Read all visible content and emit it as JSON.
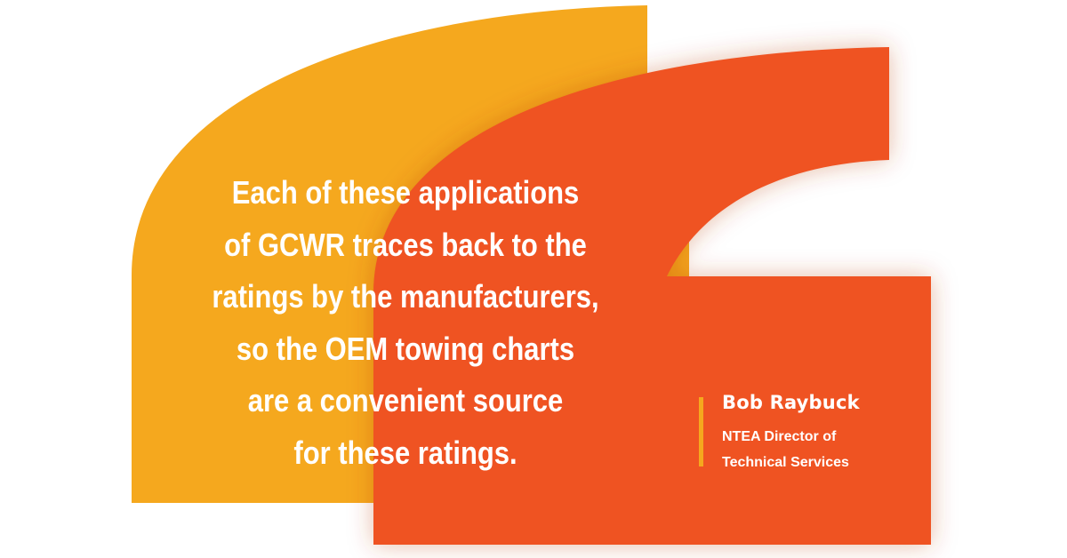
{
  "quote": {
    "lines": [
      "Each of these applications",
      "of GCWR traces back to the",
      "ratings by the manufacturers,",
      "so the OEM towing charts",
      "are a convenient source",
      "for these ratings."
    ]
  },
  "attribution": {
    "name": "Bob Raybuck",
    "title_lines": [
      "NTEA Director of",
      "Technical Services"
    ]
  },
  "colors": {
    "yellow_quote_mark": "#f5a81e",
    "orange_quote_mark": "#ef5323",
    "accent_bar": "#f5a81e",
    "text": "#ffffff",
    "background": "#ffffff"
  }
}
